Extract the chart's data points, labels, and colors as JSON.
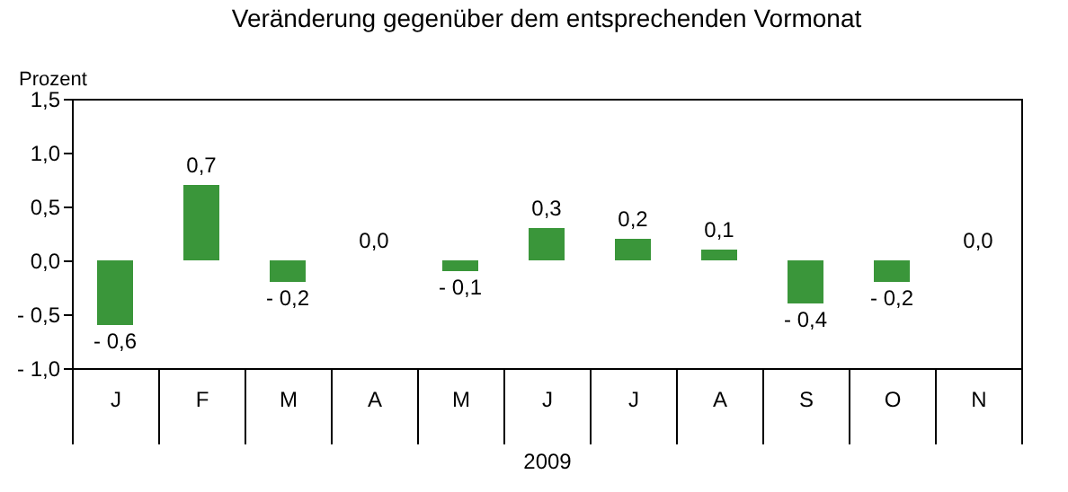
{
  "chart_data": {
    "type": "bar",
    "title": "Veränderung gegenüber dem entsprechenden Vormonat",
    "ylabel": "Prozent",
    "xlabel": "2009",
    "categories": [
      "J",
      "F",
      "M",
      "A",
      "M",
      "J",
      "J",
      "A",
      "S",
      "O",
      "N"
    ],
    "values": [
      -0.6,
      0.7,
      -0.2,
      0.0,
      -0.1,
      0.3,
      0.2,
      0.1,
      -0.4,
      -0.2,
      0.0
    ],
    "value_labels": [
      "- 0,6",
      "0,7",
      "- 0,2",
      "0,0",
      "- 0,1",
      "0,3",
      "0,2",
      "0,1",
      "- 0,4",
      "- 0,2",
      "0,0"
    ],
    "color": "#3a963a",
    "ylim": [
      -1.0,
      1.5
    ],
    "yticks": [
      {
        "value": -1.0,
        "label": "- 1,0"
      },
      {
        "value": -0.5,
        "label": "- 0,5"
      },
      {
        "value": 0.0,
        "label": "0,0"
      },
      {
        "value": 0.5,
        "label": "0,5"
      },
      {
        "value": 1.0,
        "label": "1,0"
      },
      {
        "value": 1.5,
        "label": "1,5"
      }
    ]
  }
}
